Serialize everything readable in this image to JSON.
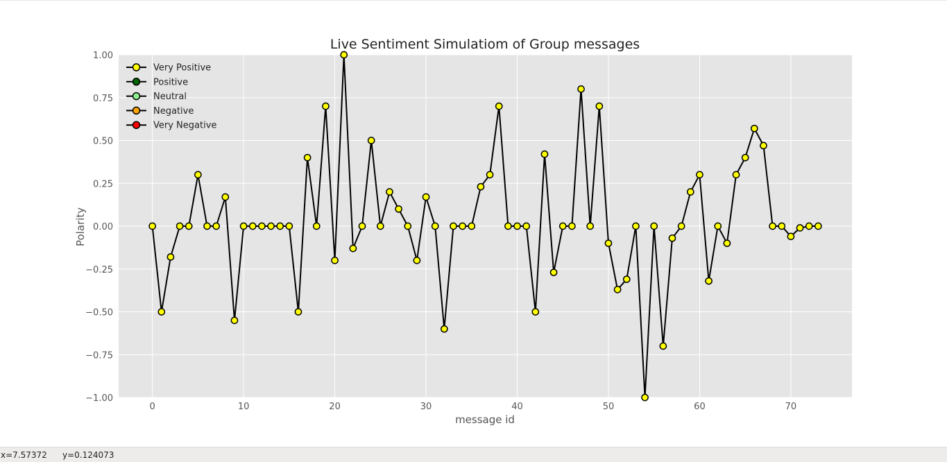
{
  "chart_data": {
    "type": "line",
    "title": "Live Sentiment Simulatiom of Group messages",
    "xlabel": "message id",
    "ylabel": "Polarity",
    "xlim": [
      -3.7,
      76.7
    ],
    "ylim": [
      -1.0,
      1.0
    ],
    "x_ticks": [
      0,
      10,
      20,
      30,
      40,
      50,
      60,
      70
    ],
    "y_ticks": [
      1.0,
      0.75,
      0.5,
      0.25,
      0.0,
      -0.25,
      -0.5,
      -0.75,
      -1.0
    ],
    "x_tick_labels": [
      "0",
      "10",
      "20",
      "30",
      "40",
      "50",
      "60",
      "70"
    ],
    "y_tick_labels": [
      "1.00",
      "0.75",
      "0.50",
      "0.25",
      "0.00",
      "−0.25",
      "−0.50",
      "−0.75",
      "−1.00"
    ],
    "grid": true,
    "legend_position": "top-left",
    "background_color": "#e5e5e5",
    "grid_color": "#ffffff",
    "line_color": "#000000",
    "marker_face_color": "#ffff00",
    "legend": [
      {
        "label": "Very Positive",
        "color": "#ffff00"
      },
      {
        "label": "Positive",
        "color": "#006400"
      },
      {
        "label": "Neutral",
        "color": "#90ee90"
      },
      {
        "label": "Negative",
        "color": "#ffa500"
      },
      {
        "label": "Very Negative",
        "color": "#ff0000"
      }
    ],
    "x": [
      0,
      1,
      2,
      3,
      4,
      5,
      6,
      7,
      8,
      9,
      10,
      11,
      12,
      13,
      14,
      15,
      16,
      17,
      18,
      19,
      20,
      21,
      22,
      23,
      24,
      25,
      26,
      27,
      28,
      29,
      30,
      31,
      32,
      33,
      34,
      35,
      36,
      37,
      38,
      39,
      40,
      41,
      42,
      43,
      44,
      45,
      46,
      47,
      48,
      49,
      50,
      51,
      52,
      53,
      54,
      55,
      56,
      57,
      58,
      59,
      60,
      61,
      62,
      63,
      64,
      65,
      66,
      67,
      68,
      69,
      70,
      71,
      72,
      73
    ],
    "y": [
      0,
      -0.5,
      -0.18,
      0,
      0,
      0.3,
      0,
      0,
      0.17,
      -0.55,
      0,
      0,
      0,
      0,
      0,
      0,
      -0.5,
      0.4,
      0,
      0.7,
      -0.2,
      1.0,
      -0.13,
      0,
      0.5,
      0,
      0.2,
      0.1,
      0,
      -0.2,
      0.17,
      0,
      -0.6,
      0,
      0,
      0,
      0.23,
      0.3,
      0.7,
      0,
      0,
      0,
      -0.5,
      0.42,
      -0.27,
      0,
      0,
      0.8,
      0,
      0.7,
      -0.1,
      -0.37,
      -0.31,
      0,
      -1.0,
      0,
      -0.7,
      -0.07,
      0,
      0.2,
      0.3,
      -0.32,
      0,
      -0.1,
      0.3,
      0.4,
      0.57,
      0.47,
      0,
      0,
      -0.06,
      -0.01,
      0,
      0
    ]
  },
  "status": {
    "x_readout": "x=7.57372",
    "y_readout": "y=0.124073"
  }
}
